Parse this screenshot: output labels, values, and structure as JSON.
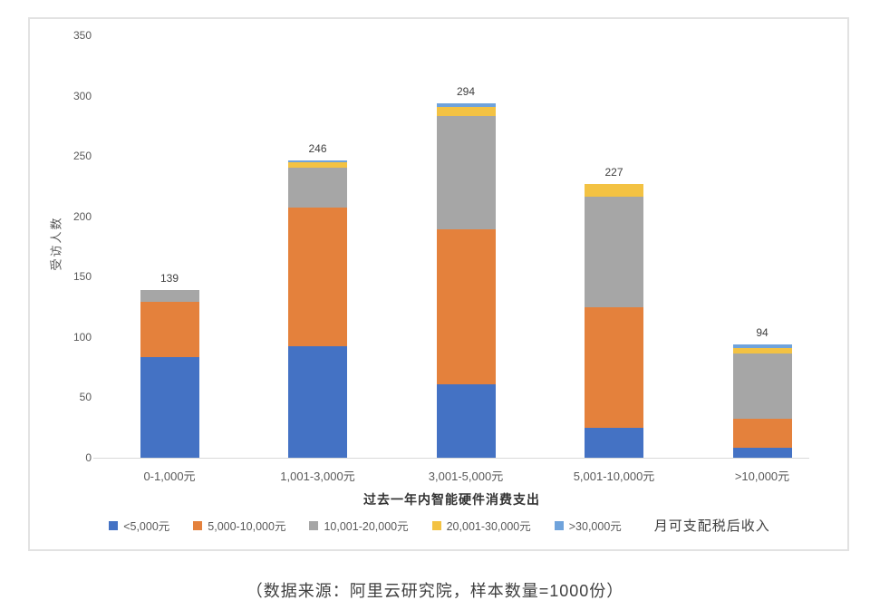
{
  "chart_data": {
    "type": "bar",
    "subtype": "stacked",
    "title": "",
    "categories": [
      "0-1,000元",
      "1,001-3,000元",
      "3,001-5,000元",
      "5,001-10,000元",
      ">10,000元"
    ],
    "series": [
      {
        "name": "<5,000元",
        "color": "#4472C4",
        "values": [
          83,
          92,
          61,
          25,
          8
        ]
      },
      {
        "name": "5,000-10,000元",
        "color": "#E4813C",
        "values": [
          46,
          115,
          128,
          100,
          24
        ]
      },
      {
        "name": "10,001-20,000元",
        "color": "#A6A6A6",
        "values": [
          10,
          33,
          94,
          91,
          54
        ]
      },
      {
        "name": "20,001-30,000元",
        "color": "#F3C243",
        "values": [
          0,
          5,
          8,
          11,
          5
        ]
      },
      {
        "name": ">30,000元",
        "color": "#6FA3DC",
        "values": [
          0,
          1,
          3,
          0,
          3
        ]
      }
    ],
    "totals": [
      139,
      246,
      294,
      227,
      94
    ],
    "xlabel": "过去一年内智能硬件消费支出",
    "ylabel": "受访人数",
    "yticks": [
      0,
      50,
      100,
      150,
      200,
      250,
      300,
      350
    ],
    "ylim": [
      0,
      350
    ],
    "grid": false,
    "legend_position": "bottom",
    "legend_note": "月可支配税后收入",
    "caption": "（数据来源：阿里云研究院，样本数量=1000份）"
  }
}
